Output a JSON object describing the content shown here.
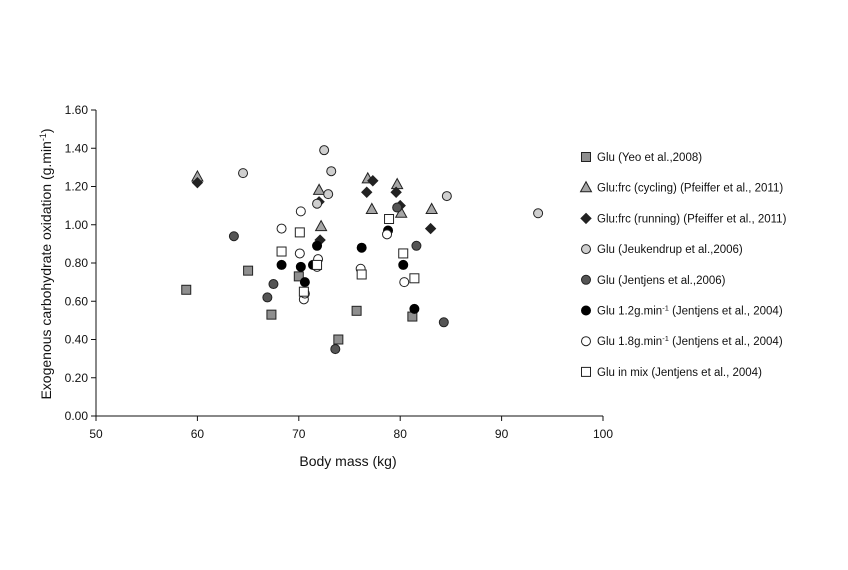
{
  "chart_data": {
    "type": "scatter",
    "xlabel": "Body mass (kg)",
    "ylabel_main": "Exogenous carbohydrate oxidation (g.min",
    "ylabel_sup": "-1",
    "ylabel_end": ")",
    "xlim": [
      50,
      100
    ],
    "ylim": [
      0,
      1.6
    ],
    "x_ticks": [
      "50",
      "60",
      "70",
      "80",
      "90",
      "100"
    ],
    "y_ticks": [
      "0.00",
      "0.20",
      "0.40",
      "0.60",
      "0.80",
      "1.00",
      "1.20",
      "1.40",
      "1.60"
    ],
    "grid": false,
    "legend_position": "right",
    "series": [
      {
        "name": "Glu (Yeo et al.,2008)",
        "marker": "square",
        "fill": "#8f8f8f",
        "stroke": "#222222",
        "points": [
          [
            58.9,
            0.66
          ],
          [
            65.0,
            0.76
          ],
          [
            67.3,
            0.53
          ],
          [
            70.0,
            0.73
          ],
          [
            73.9,
            0.4
          ],
          [
            75.7,
            0.55
          ],
          [
            81.2,
            0.52
          ]
        ]
      },
      {
        "name": "Glu:frc (cycling) (Pfeiffer et al., 2011)",
        "marker": "triangle",
        "fill": "#a6a6a6",
        "stroke": "#222222",
        "points": [
          [
            60.0,
            1.25
          ],
          [
            72.0,
            1.18
          ],
          [
            72.2,
            0.99
          ],
          [
            76.8,
            1.24
          ],
          [
            77.2,
            1.08
          ],
          [
            79.7,
            1.21
          ],
          [
            80.1,
            1.06
          ],
          [
            83.1,
            1.08
          ]
        ]
      },
      {
        "name": "Glu:frc (running) (Pfeiffer et al., 2011)",
        "marker": "diamond",
        "fill": "#222222",
        "stroke": "#222222",
        "points": [
          [
            60.0,
            1.22
          ],
          [
            72.0,
            1.12
          ],
          [
            72.1,
            0.92
          ],
          [
            76.7,
            1.17
          ],
          [
            77.3,
            1.23
          ],
          [
            79.6,
            1.17
          ],
          [
            80.0,
            1.1
          ],
          [
            83.0,
            0.98
          ]
        ]
      },
      {
        "name": "Glu (Jeukendrup et al.,2006)",
        "marker": "circle",
        "fill": "#cfcfcf",
        "stroke": "#222222",
        "points": [
          [
            64.5,
            1.27
          ],
          [
            72.5,
            1.39
          ],
          [
            72.9,
            1.16
          ],
          [
            73.2,
            1.28
          ],
          [
            71.8,
            1.11
          ],
          [
            84.6,
            1.15
          ],
          [
            93.6,
            1.06
          ]
        ]
      },
      {
        "name": "Glu (Jentjens et al.,2006)",
        "marker": "circle",
        "fill": "#555555",
        "stroke": "#222222",
        "points": [
          [
            63.6,
            0.94
          ],
          [
            66.9,
            0.62
          ],
          [
            67.5,
            0.69
          ],
          [
            73.6,
            0.35
          ],
          [
            79.7,
            1.09
          ],
          [
            81.6,
            0.89
          ],
          [
            84.3,
            0.49
          ]
        ]
      },
      {
        "name": "Glu 1.2g.min",
        "name_sup": "-1",
        "name_suffix": " (Jentjens et al., 2004)",
        "marker": "circle",
        "fill": "#000000",
        "stroke": "#000000",
        "points": [
          [
            68.3,
            0.79
          ],
          [
            70.2,
            0.78
          ],
          [
            70.6,
            0.7
          ],
          [
            71.4,
            0.79
          ],
          [
            71.8,
            0.89
          ],
          [
            76.2,
            0.88
          ],
          [
            78.8,
            0.97
          ],
          [
            80.3,
            0.79
          ],
          [
            81.4,
            0.56
          ]
        ]
      },
      {
        "name": "Glu 1.8g.min",
        "name_sup": "-1",
        "name_suffix": " (Jentjens et al., 2004)",
        "marker": "circle",
        "fill": "#ffffff",
        "stroke": "#222222",
        "points": [
          [
            68.3,
            0.98
          ],
          [
            70.2,
            1.07
          ],
          [
            70.1,
            0.85
          ],
          [
            70.5,
            0.61
          ],
          [
            70.6,
            0.64
          ],
          [
            71.8,
            0.78
          ],
          [
            71.9,
            0.82
          ],
          [
            76.1,
            0.77
          ],
          [
            78.7,
            0.95
          ],
          [
            80.4,
            0.7
          ]
        ]
      },
      {
        "name": "Glu in mix (Jentjens et al., 2004)",
        "marker": "square",
        "fill": "#ffffff",
        "stroke": "#222222",
        "points": [
          [
            68.3,
            0.86
          ],
          [
            70.1,
            0.96
          ],
          [
            70.5,
            0.65
          ],
          [
            71.8,
            0.79
          ],
          [
            76.2,
            0.74
          ],
          [
            78.9,
            1.03
          ],
          [
            80.3,
            0.85
          ],
          [
            81.4,
            0.72
          ]
        ]
      }
    ]
  }
}
